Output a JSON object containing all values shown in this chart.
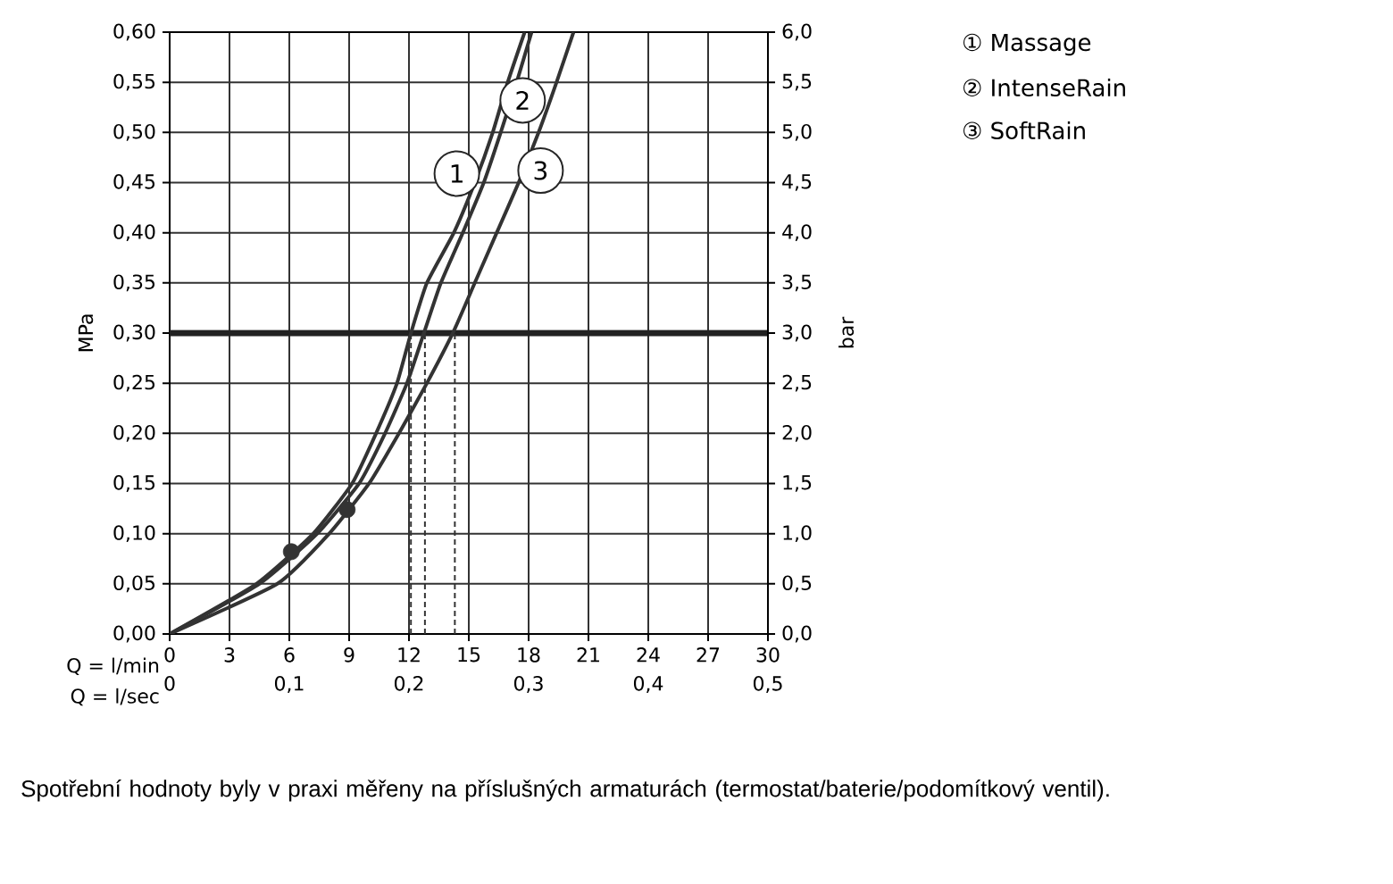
{
  "chart_data": {
    "type": "line",
    "xlabel": "Q = l/min",
    "x2label": "Q = l/sec",
    "ylabel": "MPa",
    "y2label": "bar",
    "xlim": [
      0,
      30
    ],
    "xticks": [
      0,
      3,
      6,
      9,
      12,
      15,
      18,
      21,
      24,
      27,
      30
    ],
    "x2lim": [
      0,
      0.5
    ],
    "x2ticks": [
      0,
      {
        "value": 0.1,
        "label": "0,1"
      },
      {
        "value": 0.2,
        "label": "0,2"
      },
      {
        "value": 0.3,
        "label": "0,3"
      },
      {
        "value": 0.4,
        "label": "0,4"
      },
      {
        "value": 0.5,
        "label": "0,5"
      }
    ],
    "ylim": [
      0,
      0.6
    ],
    "yticks": [
      {
        "value": 0,
        "label": "0,00"
      },
      {
        "value": 0.05,
        "label": "0,05"
      },
      {
        "value": 0.1,
        "label": "0,10"
      },
      {
        "value": 0.15,
        "label": "0,15"
      },
      {
        "value": 0.2,
        "label": "0,20"
      },
      {
        "value": 0.25,
        "label": "0,25"
      },
      {
        "value": 0.3,
        "label": "0,30"
      },
      {
        "value": 0.35,
        "label": "0,35"
      },
      {
        "value": 0.4,
        "label": "0,40"
      },
      {
        "value": 0.45,
        "label": "0,45"
      },
      {
        "value": 0.5,
        "label": "0,50"
      },
      {
        "value": 0.55,
        "label": "0,55"
      },
      {
        "value": 0.6,
        "label": "0,60"
      }
    ],
    "y2lim": [
      0,
      6
    ],
    "y2ticks": [
      {
        "value": 0,
        "label": "0,0"
      },
      {
        "value": 0.5,
        "label": "0,5"
      },
      {
        "value": 1,
        "label": "1,0"
      },
      {
        "value": 1.5,
        "label": "1,5"
      },
      {
        "value": 2,
        "label": "2,0"
      },
      {
        "value": 2.5,
        "label": "2,5"
      },
      {
        "value": 3,
        "label": "3,0"
      },
      {
        "value": 3.5,
        "label": "3,5"
      },
      {
        "value": 4,
        "label": "4,0"
      },
      {
        "value": 4.5,
        "label": "4,5"
      },
      {
        "value": 5,
        "label": "5,0"
      },
      {
        "value": 5.5,
        "label": "5,5"
      },
      {
        "value": 6,
        "label": "6,0"
      }
    ],
    "grid": true,
    "legend": "top right",
    "series": [
      {
        "name": "① Massage",
        "color": "#333333",
        "x": [
          0,
          4.35,
          7.2,
          9.15,
          10.35,
          11.4,
          12.1,
          12.9,
          14.25,
          15.3,
          16.2,
          16.95,
          17.8
        ],
        "values": [
          0,
          0.05,
          0.1,
          0.15,
          0.2,
          0.25,
          0.3,
          0.35,
          0.4,
          0.45,
          0.5,
          0.55,
          0.6
        ]
      },
      {
        "name": "② IntenseRain",
        "color": "#333333",
        "x": [
          0,
          4.5,
          7.4,
          9.5,
          10.8,
          11.9,
          12.75,
          13.6,
          14.7,
          15.75,
          16.6,
          17.4,
          18.15
        ],
        "values": [
          0,
          0.05,
          0.1,
          0.15,
          0.2,
          0.25,
          0.3,
          0.35,
          0.4,
          0.45,
          0.5,
          0.55,
          0.6
        ]
      },
      {
        "name": "③ SoftRain",
        "color": "#333333",
        "x": [
          0,
          5.4,
          8.0,
          10.0,
          11.5,
          12.9,
          14.2,
          15.3,
          16.4,
          17.5,
          18.5,
          19.4,
          20.25
        ],
        "values": [
          0,
          0.05,
          0.1,
          0.15,
          0.2,
          0.25,
          0.3,
          0.35,
          0.4,
          0.45,
          0.5,
          0.55,
          0.6
        ]
      },
      {
        "type": "scatter",
        "color": "#333333",
        "x": [
          6.1,
          8.9
        ],
        "values": [
          0.082,
          0.124
        ]
      }
    ],
    "ref_lines": [
      {
        "axis": "y",
        "value": 0.3,
        "color": "#222222"
      },
      {
        "axis": "x",
        "value": 12.1,
        "line_style": "dashed",
        "color": "#333333"
      },
      {
        "axis": "x",
        "value": 12.8,
        "line_style": "dashed",
        "color": "#333333"
      },
      {
        "axis": "x",
        "value": 14.3,
        "line_style": "dashed",
        "color": "#333333"
      }
    ],
    "annotations": [
      {
        "text": "1",
        "x": 14.4,
        "y": 0.459
      },
      {
        "text": "2",
        "x": 17.7,
        "y": 0.532
      },
      {
        "text": "3",
        "x": 18.6,
        "y": 0.462
      },
      "Spotřební hodnoty byly v praxi měřeny na příslušných armaturách (termostat/baterie/podomítkový ventil)."
    ]
  }
}
